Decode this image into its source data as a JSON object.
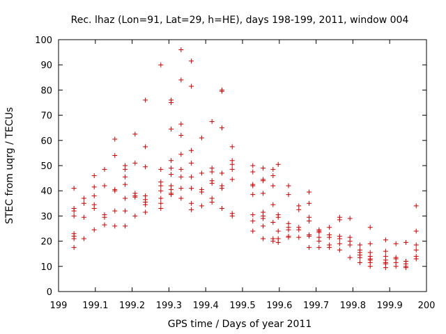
{
  "chart_data": {
    "type": "scatter",
    "title": "Rec. lhaz (Lon=91, Lat=29, h=HE), days 198-199, 2011, window 004",
    "xlabel": "GPS time / Days of year 2011",
    "ylabel": "STEC from uqrg / TECUs",
    "xlim": [
      199,
      200
    ],
    "ylim": [
      0,
      100
    ],
    "xticks": [
      "199",
      "199.1",
      "199.2",
      "199.3",
      "199.4",
      "199.5",
      "199.6",
      "199.7",
      "199.8",
      "199.9",
      "200"
    ],
    "yticks": [
      "0",
      "10",
      "20",
      "30",
      "40",
      "50",
      "60",
      "70",
      "80",
      "90",
      "100"
    ],
    "grid": false,
    "legend": "none",
    "marker": "plus",
    "color": "#cc0000",
    "points": [
      [
        199.042,
        41
      ],
      [
        199.042,
        33
      ],
      [
        199.042,
        32
      ],
      [
        199.042,
        30
      ],
      [
        199.042,
        23
      ],
      [
        199.042,
        22
      ],
      [
        199.042,
        21
      ],
      [
        199.042,
        17.5
      ],
      [
        199.069,
        37
      ],
      [
        199.069,
        35
      ],
      [
        199.069,
        29.5
      ],
      [
        199.069,
        21
      ],
      [
        199.097,
        46
      ],
      [
        199.097,
        41.5
      ],
      [
        199.097,
        38
      ],
      [
        199.097,
        34.5
      ],
      [
        199.097,
        33
      ],
      [
        199.097,
        24.5
      ],
      [
        199.125,
        48.5
      ],
      [
        199.125,
        42
      ],
      [
        199.125,
        30.5
      ],
      [
        199.125,
        29.5
      ],
      [
        199.125,
        26.5
      ],
      [
        199.153,
        60.5
      ],
      [
        199.153,
        54
      ],
      [
        199.153,
        40.5
      ],
      [
        199.153,
        40
      ],
      [
        199.153,
        32
      ],
      [
        199.153,
        26
      ],
      [
        199.181,
        50
      ],
      [
        199.181,
        48.5
      ],
      [
        199.181,
        45.5
      ],
      [
        199.181,
        42.5
      ],
      [
        199.181,
        37
      ],
      [
        199.181,
        32
      ],
      [
        199.181,
        26
      ],
      [
        199.208,
        62.5
      ],
      [
        199.208,
        51
      ],
      [
        199.208,
        39
      ],
      [
        199.208,
        38
      ],
      [
        199.208,
        37.5
      ],
      [
        199.208,
        30
      ],
      [
        199.236,
        76
      ],
      [
        199.236,
        57.5
      ],
      [
        199.236,
        49.5
      ],
      [
        199.236,
        38
      ],
      [
        199.236,
        36.5
      ],
      [
        199.236,
        35.5
      ],
      [
        199.236,
        34.5
      ],
      [
        199.236,
        31.5
      ],
      [
        199.278,
        90
      ],
      [
        199.278,
        48.5
      ],
      [
        199.278,
        43.5
      ],
      [
        199.278,
        42
      ],
      [
        199.278,
        40
      ],
      [
        199.278,
        37
      ],
      [
        199.278,
        35
      ],
      [
        199.278,
        33
      ],
      [
        199.306,
        76
      ],
      [
        199.306,
        75
      ],
      [
        199.306,
        64.5
      ],
      [
        199.306,
        52
      ],
      [
        199.306,
        49
      ],
      [
        199.306,
        46.5
      ],
      [
        199.306,
        42
      ],
      [
        199.306,
        40.5
      ],
      [
        199.306,
        39
      ],
      [
        199.306,
        38.5
      ],
      [
        199.333,
        96
      ],
      [
        199.333,
        84
      ],
      [
        199.333,
        66.5
      ],
      [
        199.333,
        62
      ],
      [
        199.333,
        54.5
      ],
      [
        199.333,
        48.5
      ],
      [
        199.333,
        45.5
      ],
      [
        199.333,
        41
      ],
      [
        199.333,
        37
      ],
      [
        199.361,
        91.5
      ],
      [
        199.361,
        81.5
      ],
      [
        199.361,
        56
      ],
      [
        199.361,
        51
      ],
      [
        199.361,
        45.5
      ],
      [
        199.361,
        41
      ],
      [
        199.361,
        35
      ],
      [
        199.361,
        32.5
      ],
      [
        199.389,
        61
      ],
      [
        199.389,
        47
      ],
      [
        199.389,
        40.5
      ],
      [
        199.389,
        39.5
      ],
      [
        199.389,
        34
      ],
      [
        199.417,
        67.5
      ],
      [
        199.417,
        49
      ],
      [
        199.417,
        47.5
      ],
      [
        199.417,
        44
      ],
      [
        199.417,
        43
      ],
      [
        199.417,
        37
      ],
      [
        199.417,
        35.5
      ],
      [
        199.444,
        80
      ],
      [
        199.444,
        79.5
      ],
      [
        199.444,
        65
      ],
      [
        199.444,
        47
      ],
      [
        199.444,
        42
      ],
      [
        199.444,
        41
      ],
      [
        199.444,
        33
      ],
      [
        199.472,
        57.5
      ],
      [
        199.472,
        52
      ],
      [
        199.472,
        50.5
      ],
      [
        199.472,
        48.5
      ],
      [
        199.472,
        44.5
      ],
      [
        199.472,
        31
      ],
      [
        199.472,
        30
      ],
      [
        199.528,
        50
      ],
      [
        199.528,
        47.5
      ],
      [
        199.528,
        42.5
      ],
      [
        199.528,
        42
      ],
      [
        199.528,
        38.5
      ],
      [
        199.528,
        30.5
      ],
      [
        199.528,
        28
      ],
      [
        199.528,
        24
      ],
      [
        199.556,
        49
      ],
      [
        199.556,
        44.5
      ],
      [
        199.556,
        44
      ],
      [
        199.556,
        39
      ],
      [
        199.556,
        31.5
      ],
      [
        199.556,
        30
      ],
      [
        199.556,
        29
      ],
      [
        199.556,
        26
      ],
      [
        199.556,
        21
      ],
      [
        199.583,
        48.5
      ],
      [
        199.583,
        46
      ],
      [
        199.583,
        42
      ],
      [
        199.583,
        34.5
      ],
      [
        199.583,
        27.5
      ],
      [
        199.583,
        21
      ],
      [
        199.583,
        20
      ],
      [
        199.597,
        50.5
      ],
      [
        199.597,
        30.5
      ],
      [
        199.597,
        29.5
      ],
      [
        199.597,
        24
      ],
      [
        199.597,
        21
      ],
      [
        199.597,
        19.5
      ],
      [
        199.625,
        42
      ],
      [
        199.625,
        38.5
      ],
      [
        199.625,
        27
      ],
      [
        199.625,
        25.5
      ],
      [
        199.625,
        24.5
      ],
      [
        199.625,
        22
      ],
      [
        199.625,
        21.5
      ],
      [
        199.653,
        34
      ],
      [
        199.653,
        32.5
      ],
      [
        199.653,
        25.5
      ],
      [
        199.653,
        24.5
      ],
      [
        199.653,
        21.5
      ],
      [
        199.681,
        39.5
      ],
      [
        199.681,
        35
      ],
      [
        199.681,
        29.5
      ],
      [
        199.681,
        28
      ],
      [
        199.681,
        22.5
      ],
      [
        199.681,
        22
      ],
      [
        199.681,
        17.5
      ],
      [
        199.708,
        24.5
      ],
      [
        199.708,
        24
      ],
      [
        199.708,
        23.5
      ],
      [
        199.708,
        21.5
      ],
      [
        199.708,
        20
      ],
      [
        199.708,
        17.5
      ],
      [
        199.736,
        25.5
      ],
      [
        199.736,
        22.5
      ],
      [
        199.736,
        21.5
      ],
      [
        199.736,
        18.5
      ],
      [
        199.736,
        17.5
      ],
      [
        199.764,
        29.5
      ],
      [
        199.764,
        28.5
      ],
      [
        199.764,
        22
      ],
      [
        199.764,
        21
      ],
      [
        199.764,
        19
      ],
      [
        199.764,
        16.5
      ],
      [
        199.792,
        29
      ],
      [
        199.792,
        21.5
      ],
      [
        199.792,
        20
      ],
      [
        199.792,
        18.5
      ],
      [
        199.792,
        13.5
      ],
      [
        199.819,
        18.5
      ],
      [
        199.819,
        16.5
      ],
      [
        199.819,
        15.5
      ],
      [
        199.819,
        14.5
      ],
      [
        199.819,
        13.5
      ],
      [
        199.819,
        11.5
      ],
      [
        199.847,
        25.5
      ],
      [
        199.847,
        19
      ],
      [
        199.847,
        15.5
      ],
      [
        199.847,
        14
      ],
      [
        199.847,
        13
      ],
      [
        199.847,
        12.5
      ],
      [
        199.847,
        11.5
      ],
      [
        199.847,
        10
      ],
      [
        199.889,
        20.5
      ],
      [
        199.889,
        16
      ],
      [
        199.889,
        14
      ],
      [
        199.889,
        12.5
      ],
      [
        199.889,
        11.5
      ],
      [
        199.889,
        11
      ],
      [
        199.889,
        9.5
      ],
      [
        199.917,
        19
      ],
      [
        199.917,
        13.5
      ],
      [
        199.917,
        13
      ],
      [
        199.917,
        11.5
      ],
      [
        199.917,
        10
      ],
      [
        199.944,
        19.5
      ],
      [
        199.944,
        12
      ],
      [
        199.944,
        11
      ],
      [
        199.944,
        10
      ],
      [
        199.944,
        9.5
      ],
      [
        199.972,
        34
      ],
      [
        199.972,
        24
      ],
      [
        199.972,
        18.5
      ],
      [
        199.972,
        16.5
      ],
      [
        199.972,
        14
      ],
      [
        199.972,
        13
      ]
    ]
  }
}
